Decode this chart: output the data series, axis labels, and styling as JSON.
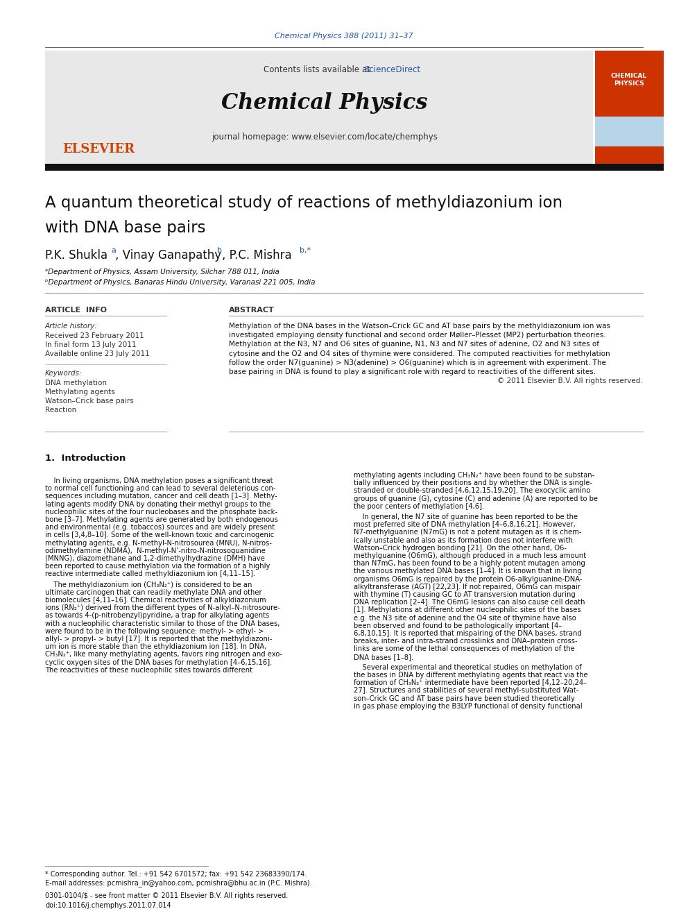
{
  "journal_ref": "Chemical Physics 388 (2011) 31–37",
  "contents_text": "Contents lists available at ",
  "sciencedirect_text": "ScienceDirect",
  "journal_name": "Chemical Physics",
  "journal_homepage": "journal homepage: www.elsevier.com/locate/chemphys",
  "elsevier_text": "ELSEVIER",
  "paper_title_line1": "A quantum theoretical study of reactions of methyldiazonium ion",
  "paper_title_line2": "with DNA base pairs",
  "affil_a": "ᵃDepartment of Physics, Assam University, Silchar 788 011, India",
  "affil_b": "ᵇDepartment of Physics, Banaras Hindu University, Varanasi 221 005, India",
  "article_info_title": "ARTICLE  INFO",
  "abstract_title": "ABSTRACT",
  "article_history_label": "Article history:",
  "received": "Received 23 February 2011",
  "final_form": "In final form 13 July 2011",
  "available": "Available online 23 July 2011",
  "keywords_label": "Keywords:",
  "keywords": [
    "DNA methylation",
    "Methylating agents",
    "Watson–Crick base pairs",
    "Reaction"
  ],
  "abstract_text": "Methylation of the DNA bases in the Watson–Crick GC and AT base pairs by the methyldiazonium ion was\ninvestigated employing density functional and second order Møller–Plesset (MP2) perturbation theories.\nMethylation at the N3, N7 and O6 sites of guanine, N1, N3 and N7 sites of adenine, O2 and N3 sites of\ncytosine and the O2 and O4 sites of thymine were considered. The computed reactivities for methylation\nfollow the order N7(guanine) > N3(adenine) > O6(guanine) which is in agreement with experiment. The\nbase pairing in DNA is found to play a significant role with regard to reactivities of the different sites.\n© 2011 Elsevier B.V. All rights reserved.",
  "intro_title": "1.  Introduction",
  "intro_col1_para1": "    In living organisms, DNA methylation poses a significant threat\nto normal cell functioning and can lead to several deleterious con-\nsequences including mutation, cancer and cell death [1–3]. Methy-\nlating agents modify DNA by donating their methyl groups to the\nnucleophilic sites of the four nucleobases and the phosphate back-\nbone [3–7]. Methylating agents are generated by both endogenous\nand environmental (e.g. tobaccos) sources and are widely present\nin cells [3,4,8–10]. Some of the well-known toxic and carcinogenic\nmethylating agents, e.g. N-methyl-N-nitrosourea (MNU), N-nitros-\nodimethylamine (NDMA),  N-methyl-N’-nitro-N-nitrosoguanidine\n(MNNG), diazomethane and 1,2-dimethylhydrazine (DMH) have\nbeen reported to cause methylation via the formation of a highly\nreactive intermediate called methyldiazonium ion [4,11–15].",
  "intro_col1_para2": "    The methyldiazonium ion (CH₃N₂⁺) is considered to be an\nultimate carcinogen that can readily methylate DNA and other\nbiomolecules [4,11–16]. Chemical reactivities of alkyldiazonium\nions (RN₂⁺) derived from the different types of N-alkyl–N-nitrosoure-\nas towards 4-(p-nitrobenzyl)pyridine, a trap for alkylating agents\nwith a nucleophilic characteristic similar to those of the DNA bases,\nwere found to be in the following sequence: methyl- > ethyl- >\nallyl- > propyl- > butyl [17]. It is reported that the methyldiazoni-\num ion is more stable than the ethyldiazonium ion [18]. In DNA,\nCH₃N₂⁺, like many methylating agents, favors ring nitrogen and exo-\ncyclic oxygen sites of the DNA bases for methylation [4–6,15,16].\nThe reactivities of these nucleophilic sites towards different",
  "intro_col2_para1": "methylating agents including CH₃N₂⁺ have been found to be substan-\ntially influenced by their positions and by whether the DNA is single-\nstranded or double-stranded [4,6,12,15,19,20]. The exocyclic amino\ngroups of guanine (G), cytosine (C) and adenine (A) are reported to be\nthe poor centers of methylation [4,6].",
  "intro_col2_para2": "    In general, the N7 site of guanine has been reported to be the\nmost preferred site of DNA methylation [4–6,8,16,21]. However,\nN7-methylguanine (N7mG) is not a potent mutagen as it is chem-\nically unstable and also as its formation does not interfere with\nWatson–Crick hydrogen bonding [21]. On the other hand, O6-\nmethylguanine (O6mG), although produced in a much less amount\nthan N7mG, has been found to be a highly potent mutagen among\nthe various methylated DNA bases [1–4]. It is known that in living\norganisms O6mG is repaired by the protein O6-alkylguanine-DNA-\nalkyltransferase (AGT) [22,23]. If not repaired, O6mG can mispair\nwith thymine (T) causing GC to AT transversion mutation during\nDNA replication [2–4]. The O6mG lesions can also cause cell death\n[1]. Methylations at different other nucleophilic sites of the bases\ne.g. the N3 site of adenine and the O4 site of thymine have also\nbeen observed and found to be pathologically important [4–\n6,8,10,15]. It is reported that mispairing of the DNA bases, strand\nbreaks, inter- and intra-strand crosslinks and DNA–protein cross-\nlinks are some of the lethal consequences of methylation of the\nDNA bases [1–8].",
  "intro_col2_para3": "    Several experimental and theoretical studies on methylation of\nthe bases in DNA by different methylating agents that react via the\nformation of CH₃N₂⁺ intermediate have been reported [4,12–20,24–\n27]. Structures and stabilities of several methyl-substituted Wat-\nson–Crick GC and AT base pairs have been studied theoretically\nin gas phase employing the B3LYP functional of density functional",
  "footnote_star": "* Corresponding author. Tel.: +91 542 6701572; fax: +91 542 23683390/174.",
  "footnote_email": "E-mail addresses: pcmishra_in@yahoo.com, pcmishra@bhu.ac.in (P.C. Mishra).",
  "footer_left": "0301-0104/$ - see front matter © 2011 Elsevier B.V. All rights reserved.",
  "footer_doi": "doi:10.1016/j.chemphys.2011.07.014",
  "bg_color": "#ffffff",
  "journal_ref_color": "#2255aa",
  "sciencedirect_color": "#2255aa",
  "elsevier_color": "#cc4400",
  "link_color": "#2255aa",
  "header_bg": "#e8e8e8"
}
